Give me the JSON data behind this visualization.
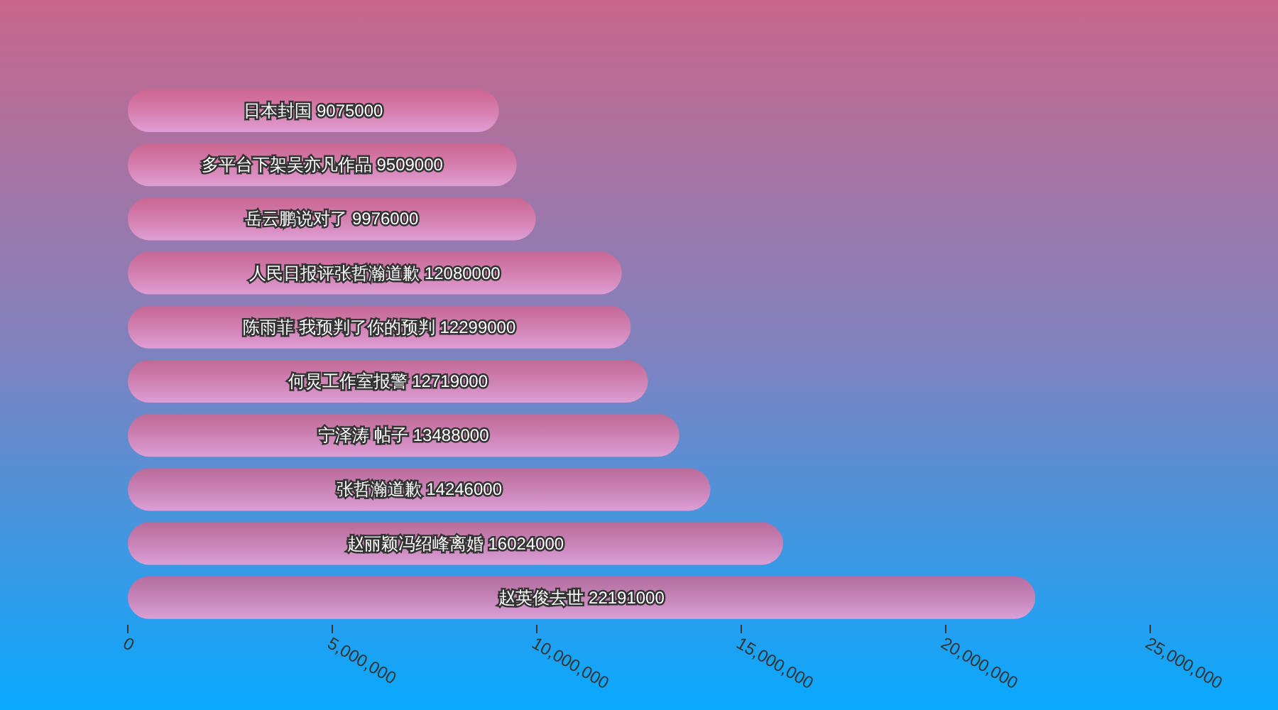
{
  "chart_data": {
    "type": "bar",
    "orientation": "horizontal",
    "categories": [
      "日本封国",
      "多平台下架吴亦凡作品",
      "岳云鹏说对了",
      "人民日报评张哲瀚道歉",
      "陈雨菲 我预判了你的预判",
      "何炅工作室报警",
      "宁泽涛 帖子",
      "张哲瀚道歉",
      "赵丽颖冯绍峰离婚",
      "赵英俊去世"
    ],
    "values": [
      9075000,
      9509000,
      9976000,
      12080000,
      12299000,
      12719000,
      13488000,
      14246000,
      16024000,
      22191000
    ],
    "color": "#e3a0d6",
    "xlim": [
      0,
      25000000
    ],
    "xticks": [
      0,
      {
        "value": 5000000,
        "label": "5,000,000"
      },
      {
        "value": 10000000,
        "label": "10,000,000"
      },
      {
        "value": 15000000,
        "label": "15,000,000"
      },
      {
        "value": 20000000,
        "label": "20,000,000"
      },
      {
        "value": 25000000,
        "label": "25,000,000"
      }
    ],
    "tick_labels": "x",
    "data_labels": true
  }
}
